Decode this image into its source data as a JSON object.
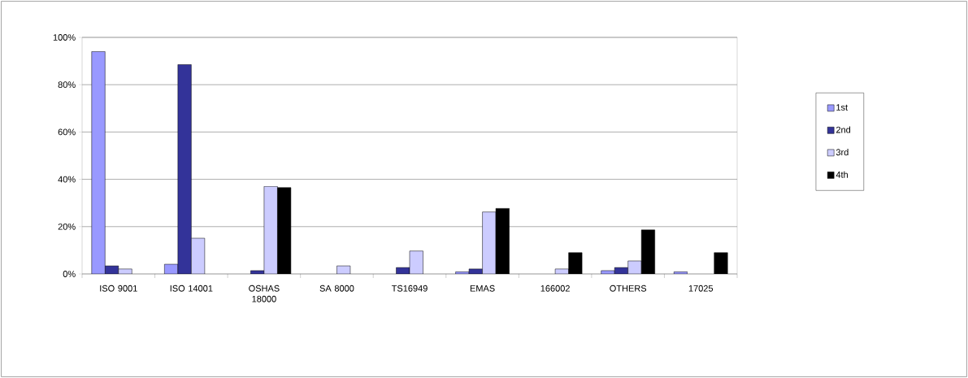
{
  "chart_data": {
    "type": "bar",
    "categories": [
      "ISO 9001",
      "ISO 14001",
      "OSHAS 18000",
      "SA 8000",
      "TS16949",
      "EMAS",
      "166002",
      "OTHERS",
      "17025"
    ],
    "series": [
      {
        "name": "1st",
        "color": "#9999ff",
        "values": [
          94,
          4.1,
          null,
          null,
          null,
          0.9,
          null,
          1.4,
          0.9
        ]
      },
      {
        "name": "2nd",
        "color": "#333399",
        "values": [
          3.4,
          88.5,
          1.4,
          null,
          2.7,
          2.1,
          null,
          2.7,
          null
        ]
      },
      {
        "name": "3rd",
        "color": "#ccccff",
        "values": [
          2.1,
          15.1,
          37,
          3.4,
          9.7,
          26.2,
          2.1,
          5.5,
          null
        ]
      },
      {
        "name": "4th",
        "color": "#000000",
        "values": [
          null,
          null,
          36.5,
          null,
          null,
          27.7,
          9.0,
          18.6,
          9.0
        ]
      }
    ],
    "ylim": [
      0,
      100
    ],
    "yticks": [
      {
        "value": 0,
        "label": "0%"
      },
      {
        "value": 20,
        "label": "20%"
      },
      {
        "value": 40,
        "label": "40%"
      },
      {
        "value": 60,
        "label": "60%"
      },
      {
        "value": 80,
        "label": "80%"
      },
      {
        "value": 100,
        "label": "100%"
      }
    ],
    "grid": "y",
    "legend": "right"
  }
}
